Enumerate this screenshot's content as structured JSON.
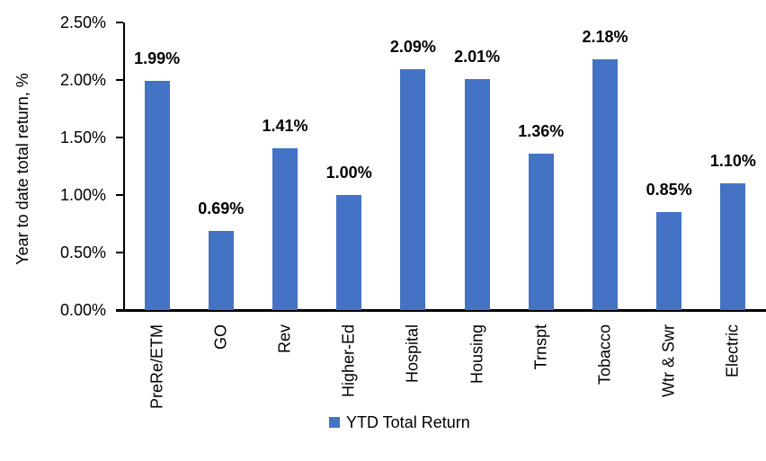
{
  "chart_data": {
    "type": "bar",
    "title": "",
    "xlabel": "",
    "ylabel": "Year to date total return, %",
    "categories": [
      "PreRe/ETM",
      "GO",
      "Rev",
      "Higher-Ed",
      "Hospital",
      "Housing",
      "Trnspt",
      "Tobacco",
      "Wtr & Swr",
      "Electric"
    ],
    "values": [
      1.99,
      0.69,
      1.41,
      1.0,
      2.09,
      2.01,
      1.36,
      2.18,
      0.85,
      1.1
    ],
    "data_labels": [
      "1.99%",
      "0.69%",
      "1.41%",
      "1.00%",
      "2.09%",
      "2.01%",
      "1.36%",
      "2.18%",
      "0.85%",
      "1.10%"
    ],
    "ylim": [
      0,
      2.5
    ],
    "ytick_values": [
      0.0,
      0.5,
      1.0,
      1.5,
      2.0,
      2.5
    ],
    "ytick_labels": [
      "0.00%",
      "0.50%",
      "1.00%",
      "1.50%",
      "2.00%",
      "2.50%"
    ],
    "grid": false,
    "legend": {
      "position": "bottom",
      "label": "YTD Total Return"
    },
    "colors": {
      "bar": "#4472C4",
      "axis": "#000000",
      "text": "#000000"
    }
  }
}
